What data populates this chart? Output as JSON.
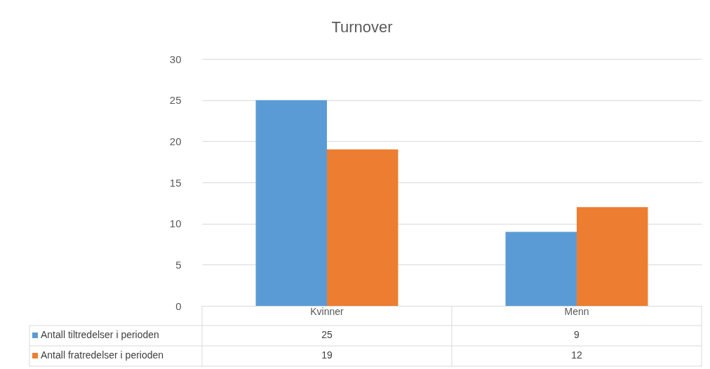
{
  "chart_data": {
    "type": "bar",
    "title": "Turnover",
    "categories": [
      "Kvinner",
      "Menn"
    ],
    "series": [
      {
        "name": "Antall tiltredelser i perioden",
        "color": "#5b9bd5",
        "values": [
          25,
          9
        ]
      },
      {
        "name": "Antall fratredelser i perioden",
        "color": "#ed7d31",
        "values": [
          19,
          12
        ]
      }
    ],
    "ylim": [
      0,
      30
    ],
    "yticks": [
      0,
      5,
      10,
      15,
      20,
      25,
      30
    ],
    "grid": "y",
    "legend": "bottom",
    "data_labels": true
  }
}
